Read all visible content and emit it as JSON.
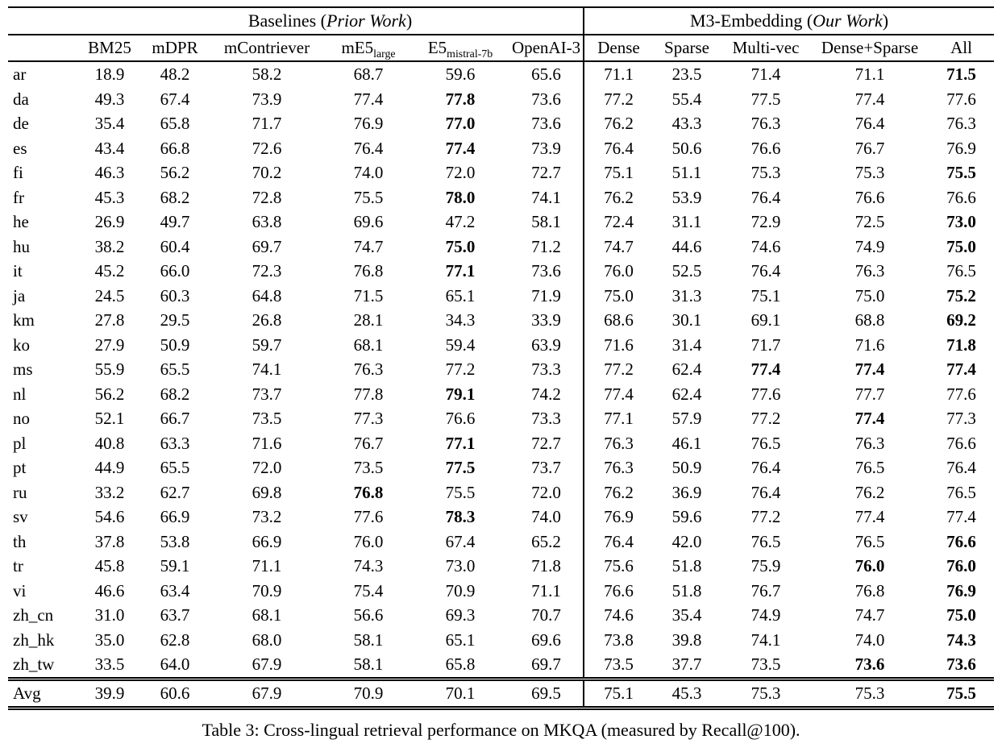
{
  "colors": {
    "text": "#000000",
    "background": "#ffffff",
    "rule": "#000000"
  },
  "group_headers": {
    "baselines": {
      "pre": "Baselines (",
      "italic": "Prior Work",
      "post": ")"
    },
    "m3": {
      "pre": "M3-Embedding (",
      "italic": "Our Work",
      "post": ")"
    }
  },
  "columns": {
    "baselines": [
      {
        "label": "BM25"
      },
      {
        "label": "mDPR"
      },
      {
        "label": "mContriever"
      },
      {
        "label": "mE5",
        "sub": "large"
      },
      {
        "label": "E5",
        "sub": "mistral-7b"
      },
      {
        "label": "OpenAI-3"
      }
    ],
    "m3": [
      {
        "label": "Dense"
      },
      {
        "label": "Sparse"
      },
      {
        "label": "Multi-vec"
      },
      {
        "label": "Dense+Sparse"
      },
      {
        "label": "All"
      }
    ]
  },
  "rows": [
    {
      "label": "ar",
      "values": [
        "18.9",
        "48.2",
        "58.2",
        "68.7",
        "59.6",
        "65.6",
        "71.1",
        "23.5",
        "71.4",
        "71.1",
        "71.5"
      ],
      "bold": [
        10
      ]
    },
    {
      "label": "da",
      "values": [
        "49.3",
        "67.4",
        "73.9",
        "77.4",
        "77.8",
        "73.6",
        "77.2",
        "55.4",
        "77.5",
        "77.4",
        "77.6"
      ],
      "bold": [
        4
      ]
    },
    {
      "label": "de",
      "values": [
        "35.4",
        "65.8",
        "71.7",
        "76.9",
        "77.0",
        "73.6",
        "76.2",
        "43.3",
        "76.3",
        "76.4",
        "76.3"
      ],
      "bold": [
        4
      ]
    },
    {
      "label": "es",
      "values": [
        "43.4",
        "66.8",
        "72.6",
        "76.4",
        "77.4",
        "73.9",
        "76.4",
        "50.6",
        "76.6",
        "76.7",
        "76.9"
      ],
      "bold": [
        4
      ]
    },
    {
      "label": "fi",
      "values": [
        "46.3",
        "56.2",
        "70.2",
        "74.0",
        "72.0",
        "72.7",
        "75.1",
        "51.1",
        "75.3",
        "75.3",
        "75.5"
      ],
      "bold": [
        10
      ]
    },
    {
      "label": "fr",
      "values": [
        "45.3",
        "68.2",
        "72.8",
        "75.5",
        "78.0",
        "74.1",
        "76.2",
        "53.9",
        "76.4",
        "76.6",
        "76.6"
      ],
      "bold": [
        4
      ]
    },
    {
      "label": "he",
      "values": [
        "26.9",
        "49.7",
        "63.8",
        "69.6",
        "47.2",
        "58.1",
        "72.4",
        "31.1",
        "72.9",
        "72.5",
        "73.0"
      ],
      "bold": [
        10
      ]
    },
    {
      "label": "hu",
      "values": [
        "38.2",
        "60.4",
        "69.7",
        "74.7",
        "75.0",
        "71.2",
        "74.7",
        "44.6",
        "74.6",
        "74.9",
        "75.0"
      ],
      "bold": [
        4,
        10
      ]
    },
    {
      "label": "it",
      "values": [
        "45.2",
        "66.0",
        "72.3",
        "76.8",
        "77.1",
        "73.6",
        "76.0",
        "52.5",
        "76.4",
        "76.3",
        "76.5"
      ],
      "bold": [
        4
      ]
    },
    {
      "label": "ja",
      "values": [
        "24.5",
        "60.3",
        "64.8",
        "71.5",
        "65.1",
        "71.9",
        "75.0",
        "31.3",
        "75.1",
        "75.0",
        "75.2"
      ],
      "bold": [
        10
      ]
    },
    {
      "label": "km",
      "values": [
        "27.8",
        "29.5",
        "26.8",
        "28.1",
        "34.3",
        "33.9",
        "68.6",
        "30.1",
        "69.1",
        "68.8",
        "69.2"
      ],
      "bold": [
        10
      ]
    },
    {
      "label": "ko",
      "values": [
        "27.9",
        "50.9",
        "59.7",
        "68.1",
        "59.4",
        "63.9",
        "71.6",
        "31.4",
        "71.7",
        "71.6",
        "71.8"
      ],
      "bold": [
        10
      ]
    },
    {
      "label": "ms",
      "values": [
        "55.9",
        "65.5",
        "74.1",
        "76.3",
        "77.2",
        "73.3",
        "77.2",
        "62.4",
        "77.4",
        "77.4",
        "77.4"
      ],
      "bold": [
        8,
        9,
        10
      ]
    },
    {
      "label": "nl",
      "values": [
        "56.2",
        "68.2",
        "73.7",
        "77.8",
        "79.1",
        "74.2",
        "77.4",
        "62.4",
        "77.6",
        "77.7",
        "77.6"
      ],
      "bold": [
        4
      ]
    },
    {
      "label": "no",
      "values": [
        "52.1",
        "66.7",
        "73.5",
        "77.3",
        "76.6",
        "73.3",
        "77.1",
        "57.9",
        "77.2",
        "77.4",
        "77.3"
      ],
      "bold": [
        9
      ]
    },
    {
      "label": "pl",
      "values": [
        "40.8",
        "63.3",
        "71.6",
        "76.7",
        "77.1",
        "72.7",
        "76.3",
        "46.1",
        "76.5",
        "76.3",
        "76.6"
      ],
      "bold": [
        4
      ]
    },
    {
      "label": "pt",
      "values": [
        "44.9",
        "65.5",
        "72.0",
        "73.5",
        "77.5",
        "73.7",
        "76.3",
        "50.9",
        "76.4",
        "76.5",
        "76.4"
      ],
      "bold": [
        4
      ]
    },
    {
      "label": "ru",
      "values": [
        "33.2",
        "62.7",
        "69.8",
        "76.8",
        "75.5",
        "72.0",
        "76.2",
        "36.9",
        "76.4",
        "76.2",
        "76.5"
      ],
      "bold": [
        3
      ]
    },
    {
      "label": "sv",
      "values": [
        "54.6",
        "66.9",
        "73.2",
        "77.6",
        "78.3",
        "74.0",
        "76.9",
        "59.6",
        "77.2",
        "77.4",
        "77.4"
      ],
      "bold": [
        4
      ]
    },
    {
      "label": "th",
      "values": [
        "37.8",
        "53.8",
        "66.9",
        "76.0",
        "67.4",
        "65.2",
        "76.4",
        "42.0",
        "76.5",
        "76.5",
        "76.6"
      ],
      "bold": [
        10
      ]
    },
    {
      "label": "tr",
      "values": [
        "45.8",
        "59.1",
        "71.1",
        "74.3",
        "73.0",
        "71.8",
        "75.6",
        "51.8",
        "75.9",
        "76.0",
        "76.0"
      ],
      "bold": [
        9,
        10
      ]
    },
    {
      "label": "vi",
      "values": [
        "46.6",
        "63.4",
        "70.9",
        "75.4",
        "70.9",
        "71.1",
        "76.6",
        "51.8",
        "76.7",
        "76.8",
        "76.9"
      ],
      "bold": [
        10
      ]
    },
    {
      "label": "zh_cn",
      "values": [
        "31.0",
        "63.7",
        "68.1",
        "56.6",
        "69.3",
        "70.7",
        "74.6",
        "35.4",
        "74.9",
        "74.7",
        "75.0"
      ],
      "bold": [
        10
      ]
    },
    {
      "label": "zh_hk",
      "values": [
        "35.0",
        "62.8",
        "68.0",
        "58.1",
        "65.1",
        "69.6",
        "73.8",
        "39.8",
        "74.1",
        "74.0",
        "74.3"
      ],
      "bold": [
        10
      ]
    },
    {
      "label": "zh_tw",
      "values": [
        "33.5",
        "64.0",
        "67.9",
        "58.1",
        "65.8",
        "69.7",
        "73.5",
        "37.7",
        "73.5",
        "73.6",
        "73.6"
      ],
      "bold": [
        9,
        10
      ]
    }
  ],
  "avg_row": {
    "label": "Avg",
    "values": [
      "39.9",
      "60.6",
      "67.9",
      "70.9",
      "70.1",
      "69.5",
      "75.1",
      "45.3",
      "75.3",
      "75.3",
      "75.5"
    ],
    "bold": [
      10
    ]
  },
  "caption": "Table 3: Cross-lingual retrieval performance on MKQA (measured by Recall@100)."
}
